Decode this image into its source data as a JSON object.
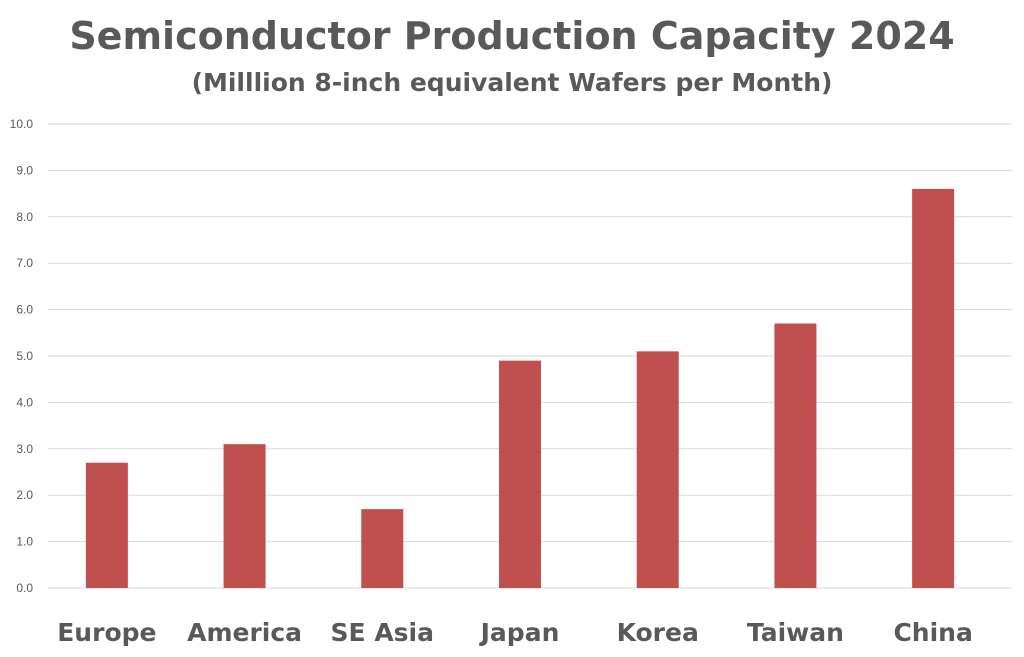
{
  "chart_data": {
    "type": "bar",
    "title": "Semiconductor Production Capacity 2024",
    "subtitle": "(Milllion 8-inch equivalent Wafers per Month)",
    "xlabel": "",
    "ylabel": "",
    "categories": [
      "Europe",
      "America",
      "SE Asia",
      "Japan",
      "Korea",
      "Taiwan",
      "China"
    ],
    "values": [
      2.7,
      3.1,
      1.7,
      4.9,
      5.1,
      5.7,
      8.6
    ],
    "ylim": [
      0,
      10
    ],
    "yticks": [
      "0.0",
      "1.0",
      "2.0",
      "3.0",
      "4.0",
      "5.0",
      "6.0",
      "7.0",
      "8.0",
      "9.0",
      "10.0"
    ],
    "grid": true,
    "bar_color": "#c0504d",
    "text_color": "#595959"
  }
}
